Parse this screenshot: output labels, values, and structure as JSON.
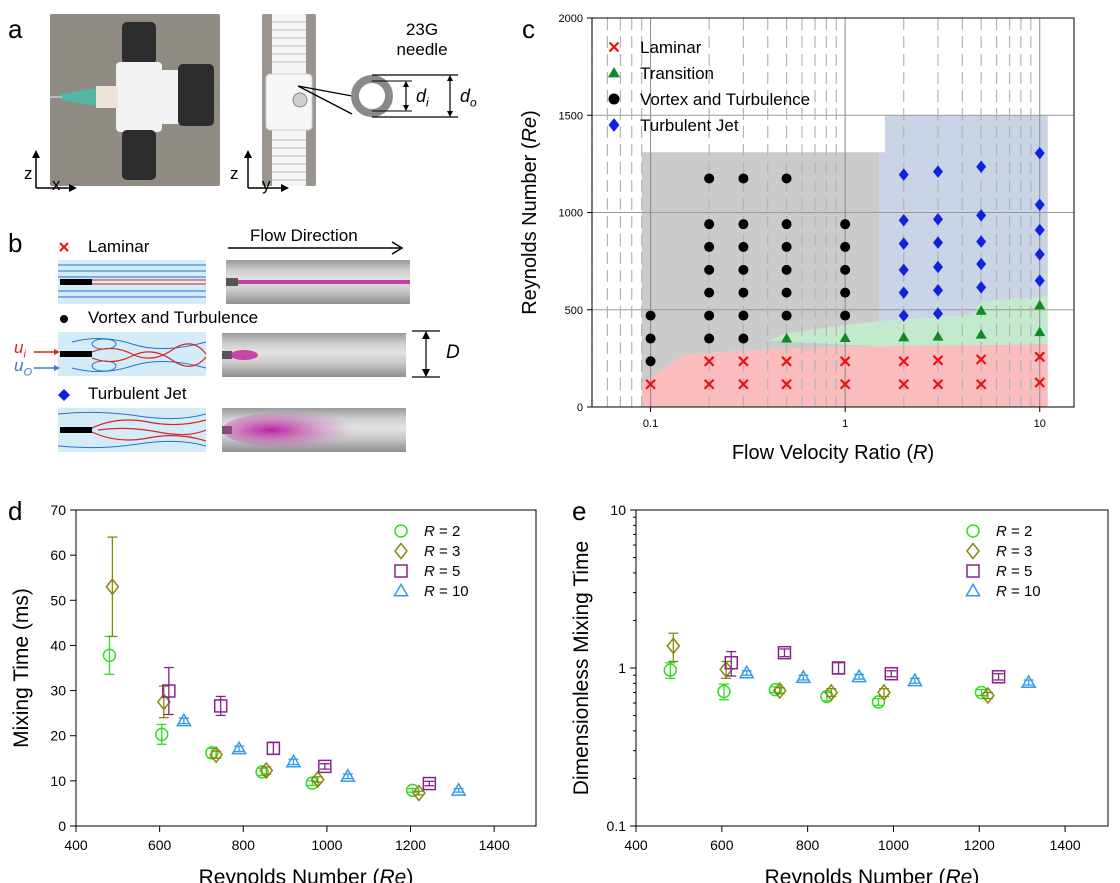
{
  "panel_labels": {
    "a": "a",
    "b": "b",
    "c": "c",
    "d": "d",
    "e": "e"
  },
  "panel_a": {
    "needle_label_1": "23G",
    "needle_label_2": "needle",
    "di": "d",
    "di_sub": "i",
    "do": "d",
    "do_sub": "o",
    "axis_z1": "z",
    "axis_x": "x",
    "axis_z2": "z",
    "axis_y": "y"
  },
  "panel_b": {
    "flow_direction": "Flow Direction",
    "laminar": "Laminar",
    "vortex": "Vortex and Turbulence",
    "jet": "Turbulent Jet",
    "ui": "u",
    "ui_sub": "i",
    "uo": "u",
    "uo_sub": "O",
    "D": "D"
  },
  "colors": {
    "laminar": "#ee1111",
    "transition": "#118822",
    "vortex": "#000000",
    "jet": "#1122dd",
    "r2": "#33dd22",
    "r3": "#888811",
    "r5": "#882288",
    "r10": "#3399ee"
  },
  "chart_data": [
    {
      "id": "c",
      "type": "scatter",
      "xscale": "log",
      "xlim": [
        0.05,
        15
      ],
      "ylim": [
        0,
        2000
      ],
      "xlabel": "Flow Velocity Ratio (",
      "xlabel_italic": "R",
      "xlabel_end": ")",
      "ylabel": "Reynolds Number (",
      "ylabel_italic": "Re",
      "ylabel_end": ")",
      "xticks": [
        0.1,
        1,
        10
      ],
      "xtick_labels": [
        "0.1",
        "1",
        "10"
      ],
      "yticks": [
        0,
        500,
        1000,
        1500,
        2000
      ],
      "ytick_labels": [
        "0",
        "500",
        "1000",
        "1500",
        "2000"
      ],
      "legend": [
        "Laminar",
        "Transition",
        "Vortex and Turbulence",
        "Turbulent Jet"
      ],
      "series": [
        {
          "name": "Laminar",
          "marker": "x",
          "points": [
            [
              0.1,
              117
            ],
            [
              0.2,
              117
            ],
            [
              0.3,
              117
            ],
            [
              0.5,
              117
            ],
            [
              1,
              117
            ],
            [
              2,
              117
            ],
            [
              3,
              117
            ],
            [
              5,
              117
            ],
            [
              10,
              126
            ],
            [
              0.2,
              235
            ],
            [
              0.3,
              235
            ],
            [
              0.5,
              235
            ],
            [
              1,
              235
            ],
            [
              2,
              235
            ],
            [
              3,
              240
            ],
            [
              5,
              245
            ],
            [
              10,
              258
            ]
          ]
        },
        {
          "name": "Transition",
          "marker": "triangle",
          "points": [
            [
              0.5,
              352
            ],
            [
              1,
              355
            ],
            [
              2,
              358
            ],
            [
              3,
              362
            ],
            [
              5,
              372
            ],
            [
              10,
              385
            ],
            [
              5,
              495
            ],
            [
              10,
              523
            ]
          ]
        },
        {
          "name": "Vortex and Turbulence",
          "marker": "circle",
          "points": [
            [
              0.1,
              235
            ],
            [
              0.1,
              352
            ],
            [
              0.1,
              470
            ],
            [
              0.2,
              352
            ],
            [
              0.2,
              470
            ],
            [
              0.2,
              588
            ],
            [
              0.2,
              705
            ],
            [
              0.2,
              823
            ],
            [
              0.2,
              940
            ],
            [
              0.2,
              1175
            ],
            [
              0.3,
              352
            ],
            [
              0.3,
              470
            ],
            [
              0.3,
              588
            ],
            [
              0.3,
              705
            ],
            [
              0.3,
              823
            ],
            [
              0.3,
              940
            ],
            [
              0.3,
              1175
            ],
            [
              0.5,
              470
            ],
            [
              0.5,
              588
            ],
            [
              0.5,
              705
            ],
            [
              0.5,
              823
            ],
            [
              0.5,
              940
            ],
            [
              0.5,
              1175
            ],
            [
              1,
              470
            ],
            [
              1,
              588
            ],
            [
              1,
              705
            ],
            [
              1,
              823
            ],
            [
              1,
              940
            ]
          ]
        },
        {
          "name": "Turbulent Jet",
          "marker": "diamond",
          "points": [
            [
              2,
              470
            ],
            [
              2,
              588
            ],
            [
              2,
              705
            ],
            [
              2,
              840
            ],
            [
              2,
              960
            ],
            [
              2,
              1195
            ],
            [
              3,
              480
            ],
            [
              3,
              600
            ],
            [
              3,
              720
            ],
            [
              3,
              845
            ],
            [
              3,
              965
            ],
            [
              3,
              1210
            ],
            [
              5,
              615
            ],
            [
              5,
              735
            ],
            [
              5,
              850
            ],
            [
              5,
              985
            ],
            [
              5,
              1235
            ],
            [
              10,
              650
            ],
            [
              10,
              785
            ],
            [
              10,
              910
            ],
            [
              10,
              1040
            ],
            [
              10,
              1305
            ]
          ]
        }
      ],
      "regions": {
        "laminar_upper": [
          [
            0.09,
            120
          ],
          [
            0.15,
            270
          ],
          [
            0.5,
            300
          ],
          [
            1,
            310
          ],
          [
            1.5,
            312
          ],
          [
            2,
            315
          ],
          [
            5,
            318
          ],
          [
            11,
            325
          ]
        ],
        "transition_upper": [
          [
            0.4,
            340
          ],
          [
            0.5,
            380
          ],
          [
            1,
            420
          ],
          [
            1.5,
            440
          ],
          [
            2,
            450
          ],
          [
            3,
            460
          ],
          [
            4.5,
            475
          ],
          [
            5,
            540
          ],
          [
            8,
            560
          ],
          [
            11,
            570
          ]
        ],
        "vortex_box": {
          "x0": 0.09,
          "x1": 1.5,
          "y_top": 1310
        },
        "jet_box": [
          [
            1.5,
            1310
          ],
          [
            1.6,
            1310
          ],
          [
            1.6,
            1500
          ],
          [
            11,
            1500
          ]
        ]
      },
      "grid_lines": "dashed vertical at minor log ticks; solid horizontal at major ticks"
    },
    {
      "id": "d",
      "type": "scatter",
      "xlim": [
        400,
        1500
      ],
      "ylim": [
        0,
        70
      ],
      "xlabel": "Reynolds Number (",
      "xlabel_italic": "Re",
      "xlabel_end": ")",
      "ylabel": "Mixing Time (ms)",
      "xticks": [
        400,
        600,
        800,
        1000,
        1200,
        1400
      ],
      "xtick_labels": [
        "400",
        "600",
        "800",
        "1000",
        "1200",
        "1400"
      ],
      "yticks": [
        0,
        10,
        20,
        30,
        40,
        50,
        60,
        70
      ],
      "ytick_labels": [
        "0",
        "10",
        "20",
        "30",
        "40",
        "50",
        "60",
        "70"
      ],
      "legend_prefix": "R",
      "legend_values": [
        "= 2",
        "= 3",
        "= 5",
        "= 10"
      ],
      "series": [
        {
          "name": "R = 2",
          "marker": "circle",
          "points": [
            [
              480,
              37.8,
              4.2
            ],
            [
              605,
              20.3,
              2.2
            ],
            [
              725,
              16.2,
              1.0
            ],
            [
              845,
              12.0,
              0.8
            ],
            [
              965,
              9.5,
              0.5
            ],
            [
              1205,
              7.9,
              0.4
            ]
          ]
        },
        {
          "name": "R = 3",
          "marker": "diamond",
          "points": [
            [
              487,
              53.0,
              11.0
            ],
            [
              610,
              27.5,
              3.5
            ],
            [
              735,
              15.8,
              0.8
            ],
            [
              855,
              12.3,
              0.8
            ],
            [
              978,
              10.3,
              0.6
            ],
            [
              1220,
              7.3,
              0.4
            ]
          ]
        },
        {
          "name": "R = 5",
          "marker": "square",
          "points": [
            [
              622,
              29.9,
              5.2
            ],
            [
              746,
              26.6,
              2.1
            ],
            [
              872,
              17.2,
              1.3
            ],
            [
              995,
              13.2,
              0.6
            ],
            [
              1245,
              9.4,
              0.5
            ]
          ]
        },
        {
          "name": "R = 10",
          "marker": "triangle",
          "points": [
            [
              658,
              23.3,
              0.6
            ],
            [
              790,
              17.1,
              0.6
            ],
            [
              920,
              14.2,
              0.6
            ],
            [
              1050,
              11.0,
              0.5
            ],
            [
              1315,
              7.9,
              0.4
            ]
          ]
        }
      ]
    },
    {
      "id": "e",
      "type": "scatter",
      "yscale": "log",
      "xlim": [
        400,
        1500
      ],
      "ylim": [
        0.1,
        10
      ],
      "xlabel": "Reynolds Number (",
      "xlabel_italic": "Re",
      "xlabel_end": ")",
      "ylabel": "Dimensionless Mixing Time",
      "xticks": [
        400,
        600,
        800,
        1000,
        1200,
        1400
      ],
      "xtick_labels": [
        "400",
        "600",
        "800",
        "1000",
        "1200",
        "1400"
      ],
      "yticks": [
        0.1,
        1,
        10
      ],
      "ytick_labels": [
        "0.1",
        "1",
        "10"
      ],
      "legend_prefix": "R",
      "legend_values": [
        "= 2",
        "= 3",
        "= 5",
        "= 10"
      ],
      "series": [
        {
          "name": "R = 2",
          "marker": "circle",
          "points": [
            [
              480,
              0.97,
              0.11
            ],
            [
              605,
              0.71,
              0.08
            ],
            [
              725,
              0.73,
              0.03
            ],
            [
              845,
              0.66,
              0.04
            ],
            [
              965,
              0.61,
              0.03
            ],
            [
              1205,
              0.7,
              0.03
            ]
          ]
        },
        {
          "name": "R = 3",
          "marker": "diamond",
          "points": [
            [
              487,
              1.38,
              0.28
            ],
            [
              610,
              0.98,
              0.12
            ],
            [
              735,
              0.72,
              0.03
            ],
            [
              855,
              0.7,
              0.04
            ],
            [
              978,
              0.7,
              0.04
            ],
            [
              1220,
              0.67,
              0.03
            ]
          ]
        },
        {
          "name": "R = 5",
          "marker": "square",
          "points": [
            [
              622,
              1.08,
              0.19
            ],
            [
              746,
              1.25,
              0.07
            ],
            [
              872,
              1.0,
              0.08
            ],
            [
              995,
              0.92,
              0.04
            ],
            [
              1245,
              0.88,
              0.04
            ]
          ]
        },
        {
          "name": "R = 10",
          "marker": "triangle",
          "points": [
            [
              658,
              0.93,
              0.03
            ],
            [
              790,
              0.87,
              0.03
            ],
            [
              920,
              0.88,
              0.03
            ],
            [
              1050,
              0.83,
              0.03
            ],
            [
              1315,
              0.81,
              0.03
            ]
          ]
        }
      ]
    }
  ]
}
